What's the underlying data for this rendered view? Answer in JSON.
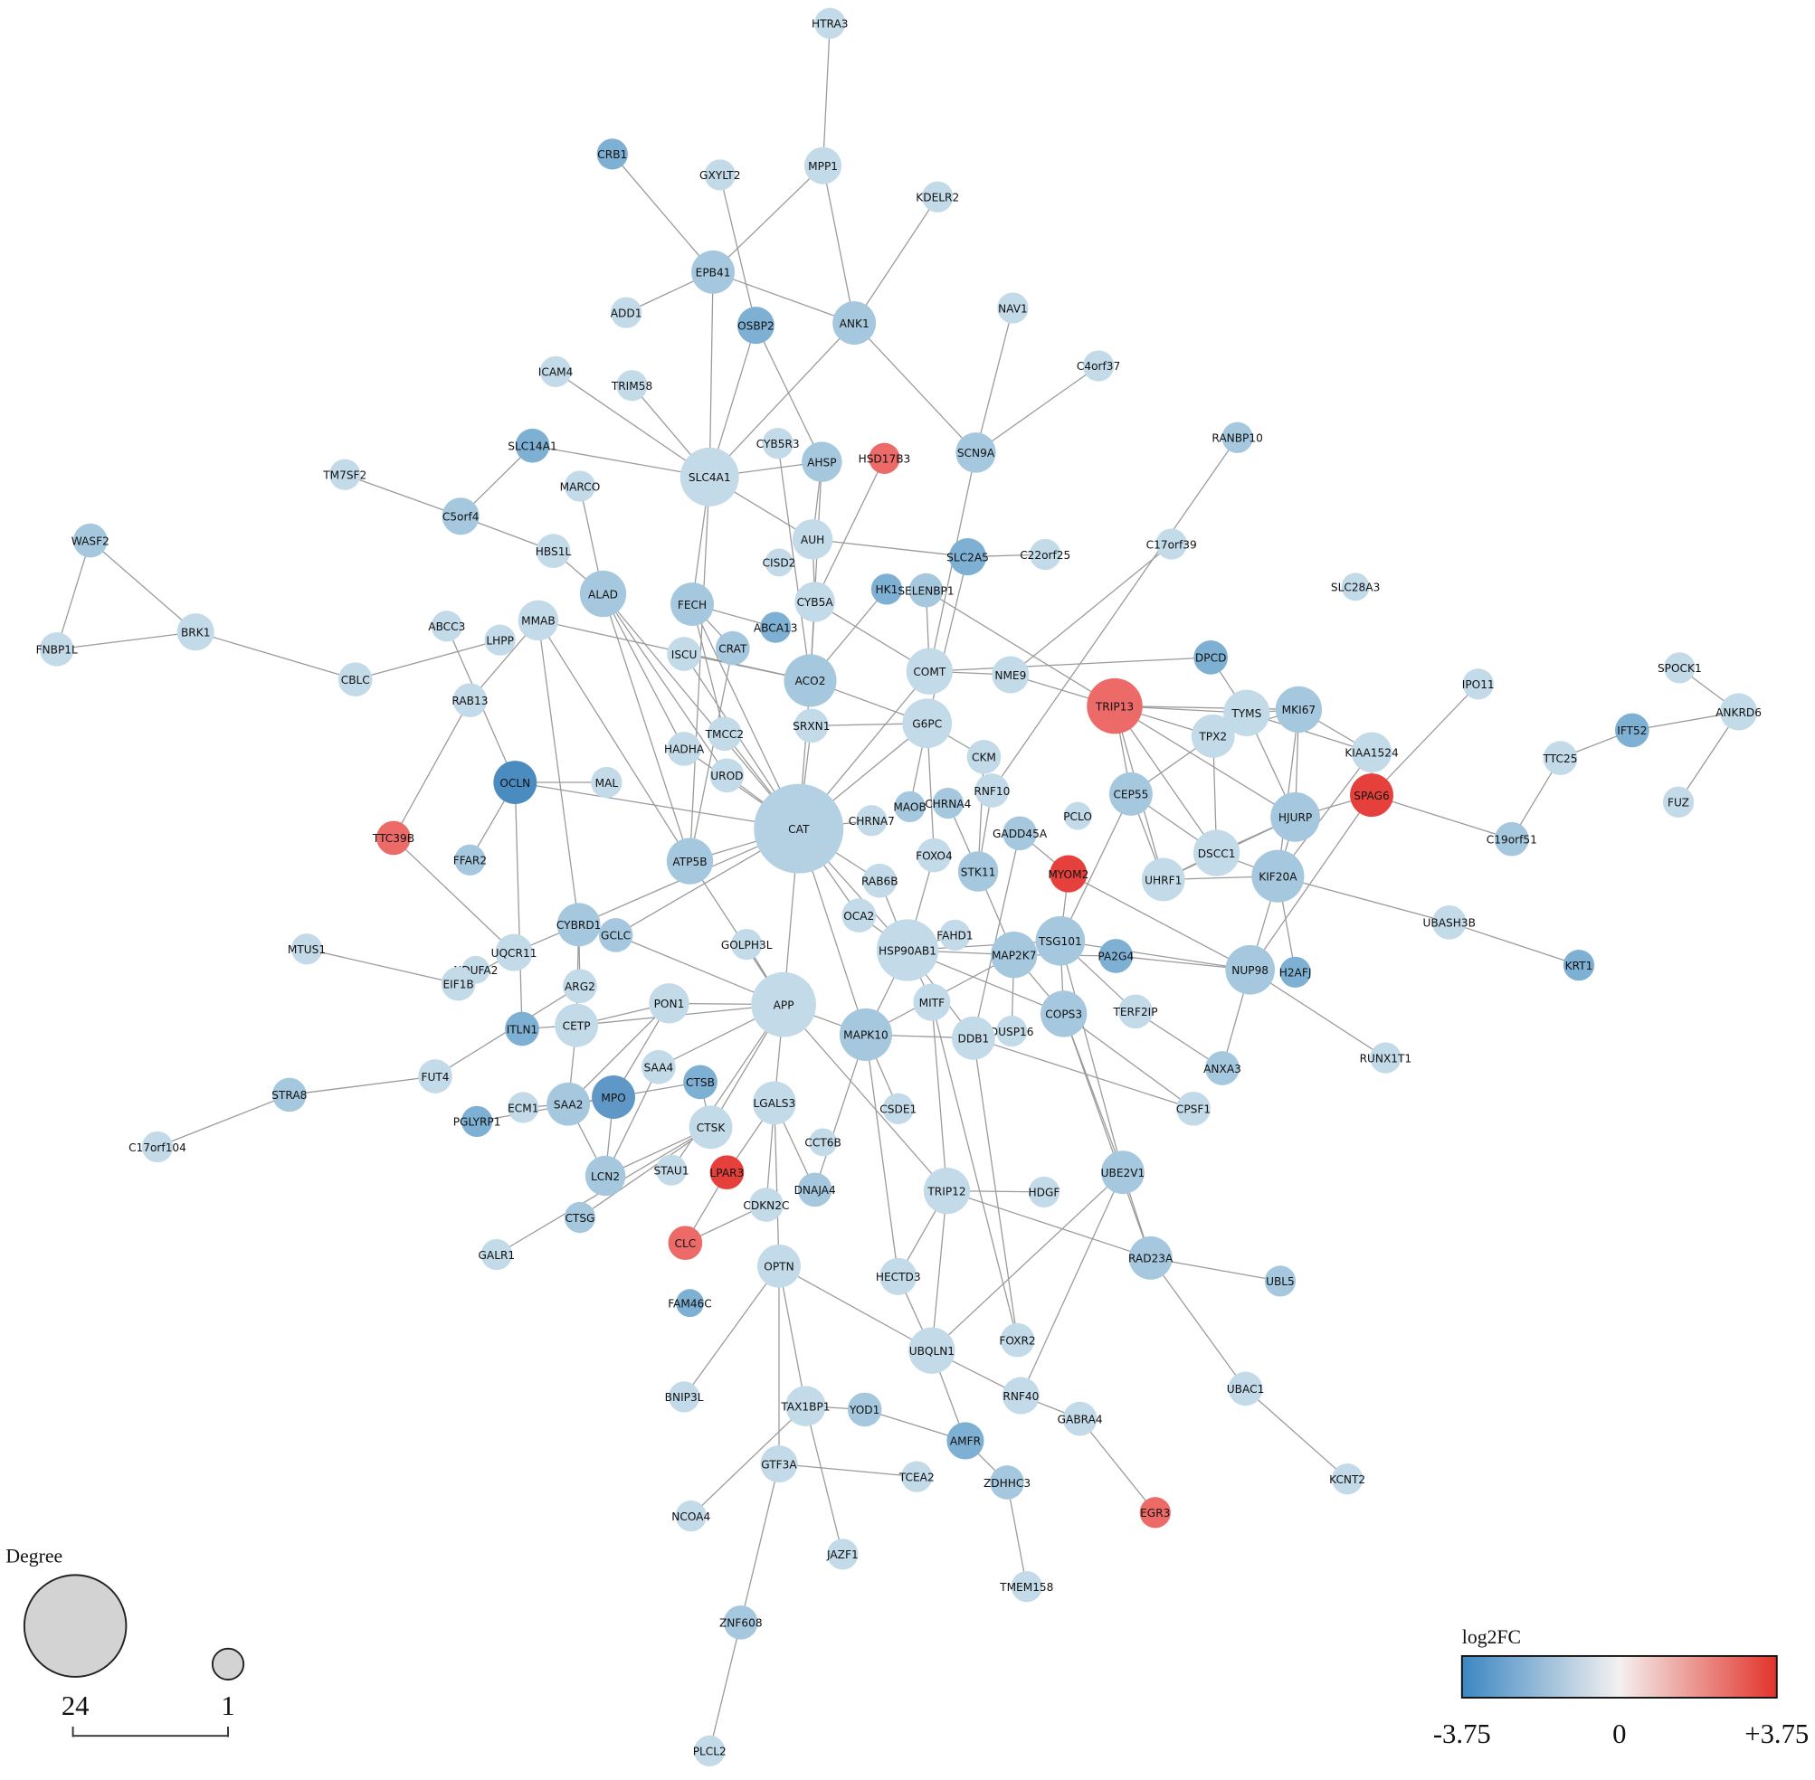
{
  "nodes": [
    {
      "label": "HTRA3",
      "color": "#c3dae9"
    },
    {
      "label": "MPP1",
      "color": "#c3dae9"
    },
    {
      "label": "CRB1",
      "color": "#7eb0d3"
    },
    {
      "label": "GXYLT2",
      "color": "#c3dae9"
    },
    {
      "label": "KDELR2",
      "color": "#c3dae9"
    },
    {
      "label": "EPB41",
      "color": "#a5c8df"
    },
    {
      "label": "ADD1",
      "color": "#c3dae9"
    },
    {
      "label": "OSBP2",
      "color": "#7eb0d3"
    },
    {
      "label": "ANK1",
      "color": "#a5c8df"
    },
    {
      "label": "NAV1",
      "color": "#c3dae9"
    },
    {
      "label": "ICAM4",
      "color": "#c3dae9"
    },
    {
      "label": "TRIM58",
      "color": "#c3dae9"
    },
    {
      "label": "C4orf37",
      "color": "#c3dae9"
    },
    {
      "label": "SLC14A1",
      "color": "#7eb0d3"
    },
    {
      "label": "TM7SF2",
      "color": "#c3dae9"
    },
    {
      "label": "MARCO",
      "color": "#c3dae9"
    },
    {
      "label": "SLC4A1",
      "color": "#c3dae9"
    },
    {
      "label": "CYB5R3",
      "color": "#c3dae9"
    },
    {
      "label": "AHSP",
      "color": "#a5c8df"
    },
    {
      "label": "HSD17B3",
      "color": "#ec6a68"
    },
    {
      "label": "SCN9A",
      "color": "#a5c8df"
    },
    {
      "label": "RANBP10",
      "color": "#a5c8df"
    },
    {
      "label": "C5orf4",
      "color": "#a5c8df"
    },
    {
      "label": "HBS1L",
      "color": "#c3dae9"
    },
    {
      "label": "AUH",
      "color": "#c3dae9"
    },
    {
      "label": "CISD2",
      "color": "#c3dae9"
    },
    {
      "label": "SLC2A5",
      "color": "#7eb0d3"
    },
    {
      "label": "C22orf25",
      "color": "#c3dae9"
    },
    {
      "label": "C17orf39",
      "color": "#c3dae9"
    },
    {
      "label": "WASF2",
      "color": "#a5c8df"
    },
    {
      "label": "ALAD",
      "color": "#a5c8df"
    },
    {
      "label": "FECH",
      "color": "#a5c8df"
    },
    {
      "label": "CYB5A",
      "color": "#c3dae9"
    },
    {
      "label": "HK1",
      "color": "#7eb0d3"
    },
    {
      "label": "SELENBP1",
      "color": "#a5c8df"
    },
    {
      "label": "SLC28A3",
      "color": "#c3dae9"
    },
    {
      "label": "ABCC3",
      "color": "#c3dae9"
    },
    {
      "label": "MMAB",
      "color": "#c3dae9"
    },
    {
      "label": "BRK1",
      "color": "#c3dae9"
    },
    {
      "label": "FNBP1L",
      "color": "#c3dae9"
    },
    {
      "label": "LHPP",
      "color": "#c3dae9"
    },
    {
      "label": "CBLC",
      "color": "#c3dae9"
    },
    {
      "label": "ISCU",
      "color": "#c3dae9"
    },
    {
      "label": "CRAT",
      "color": "#a5c8df"
    },
    {
      "label": "ABCA13",
      "color": "#7eb0d3"
    },
    {
      "label": "ACO2",
      "color": "#a5c8df"
    },
    {
      "label": "COMT",
      "color": "#c3dae9"
    },
    {
      "label": "NME9",
      "color": "#c3dae9"
    },
    {
      "label": "DPCD",
      "color": "#7eb0d3"
    },
    {
      "label": "IPO11",
      "color": "#c3dae9"
    },
    {
      "label": "SPOCK1",
      "color": "#c3dae9"
    },
    {
      "label": "TRIP13",
      "color": "#ec6a68"
    },
    {
      "label": "TYMS",
      "color": "#c3dae9"
    },
    {
      "label": "MKI67",
      "color": "#a5c8df"
    },
    {
      "label": "ANKRD6",
      "color": "#c3dae9"
    },
    {
      "label": "RAB13",
      "color": "#c3dae9"
    },
    {
      "label": "G6PC",
      "color": "#c3dae9"
    },
    {
      "label": "SRXN1",
      "color": "#c3dae9"
    },
    {
      "label": "TMCC2",
      "color": "#c3dae9"
    },
    {
      "label": "HADHA",
      "color": "#c3dae9"
    },
    {
      "label": "TPX2",
      "color": "#c3dae9"
    },
    {
      "label": "KIAA1524",
      "color": "#c3dae9"
    },
    {
      "label": "IFT52",
      "color": "#7eb0d3"
    },
    {
      "label": "TTC25",
      "color": "#c3dae9"
    },
    {
      "label": "CKM",
      "color": "#c3dae9"
    },
    {
      "label": "UROD",
      "color": "#c3dae9"
    },
    {
      "label": "OCLN",
      "color": "#4a8cc0"
    },
    {
      "label": "MAL",
      "color": "#c3dae9"
    },
    {
      "label": "RNF10",
      "color": "#c3dae9"
    },
    {
      "label": "SPAG6",
      "color": "#e5403c"
    },
    {
      "label": "CEP55",
      "color": "#a5c8df"
    },
    {
      "label": "HJURP",
      "color": "#a5c8df"
    },
    {
      "label": "FUZ",
      "color": "#c3dae9"
    },
    {
      "label": "CAT",
      "color": "#b4d1e4"
    },
    {
      "label": "CHRNA7",
      "color": "#c3dae9"
    },
    {
      "label": "MAOB",
      "color": "#a5c8df"
    },
    {
      "label": "CHRNA4",
      "color": "#a5c8df"
    },
    {
      "label": "PCLO",
      "color": "#c3dae9"
    },
    {
      "label": "TTC39B",
      "color": "#ec6a68"
    },
    {
      "label": "C19orf51",
      "color": "#a5c8df"
    },
    {
      "label": "GADD45A",
      "color": "#a5c8df"
    },
    {
      "label": "DSCC1",
      "color": "#c3dae9"
    },
    {
      "label": "ATP5B",
      "color": "#a5c8df"
    },
    {
      "label": "FFAR2",
      "color": "#a5c8df"
    },
    {
      "label": "FOXO4",
      "color": "#c3dae9"
    },
    {
      "label": "UHRF1",
      "color": "#c3dae9"
    },
    {
      "label": "KIF20A",
      "color": "#a5c8df"
    },
    {
      "label": "MYOM2",
      "color": "#e5403c"
    },
    {
      "label": "STK11",
      "color": "#a5c8df"
    },
    {
      "label": "RAB6B",
      "color": "#c3dae9"
    },
    {
      "label": "OCA2",
      "color": "#c3dae9"
    },
    {
      "label": "UBASH3B",
      "color": "#c3dae9"
    },
    {
      "label": "CYBRD1",
      "color": "#a5c8df"
    },
    {
      "label": "GCLC",
      "color": "#a5c8df"
    },
    {
      "label": "MTUS1",
      "color": "#c3dae9"
    },
    {
      "label": "UQCR11",
      "color": "#c3dae9"
    },
    {
      "label": "FAHD1",
      "color": "#c3dae9"
    },
    {
      "label": "HSP90AB1",
      "color": "#c3dae9"
    },
    {
      "label": "MAP2K7",
      "color": "#a5c8df"
    },
    {
      "label": "TSG101",
      "color": "#a5c8df"
    },
    {
      "label": "PA2G4",
      "color": "#7eb0d3"
    },
    {
      "label": "GOLPH3L",
      "color": "#c3dae9"
    },
    {
      "label": "KRT1",
      "color": "#7eb0d3"
    },
    {
      "label": "NDUFA2",
      "color": "#c3dae9"
    },
    {
      "label": "NUP98",
      "color": "#a5c8df"
    },
    {
      "label": "H2AFJ",
      "color": "#7eb0d3"
    },
    {
      "label": "ARG2",
      "color": "#c3dae9"
    },
    {
      "label": "APP",
      "color": "#c3dae9"
    },
    {
      "label": "EIF1B",
      "color": "#c3dae9"
    },
    {
      "label": "PON1",
      "color": "#c3dae9"
    },
    {
      "label": "MITF",
      "color": "#c3dae9"
    },
    {
      "label": "TERF2IP",
      "color": "#c3dae9"
    },
    {
      "label": "COPS3",
      "color": "#a5c8df"
    },
    {
      "label": "CETP",
      "color": "#c3dae9"
    },
    {
      "label": "ITLN1",
      "color": "#7eb0d3"
    },
    {
      "label": "MAPK10",
      "color": "#a5c8df"
    },
    {
      "label": "DUSP16",
      "color": "#c3dae9"
    },
    {
      "label": "DDB1",
      "color": "#c3dae9"
    },
    {
      "label": "RUNX1T1",
      "color": "#c3dae9"
    },
    {
      "label": "ANXA3",
      "color": "#a5c8df"
    },
    {
      "label": "SAA4",
      "color": "#c3dae9"
    },
    {
      "label": "CTSB",
      "color": "#7eb0d3"
    },
    {
      "label": "FUT4",
      "color": "#c3dae9"
    },
    {
      "label": "STRA8",
      "color": "#a5c8df"
    },
    {
      "label": "SAA2",
      "color": "#a5c8df"
    },
    {
      "label": "MPO",
      "color": "#5f98c6"
    },
    {
      "label": "ECM1",
      "color": "#c3dae9"
    },
    {
      "label": "LGALS3",
      "color": "#c3dae9"
    },
    {
      "label": "CSDE1",
      "color": "#c3dae9"
    },
    {
      "label": "CPSF1",
      "color": "#c3dae9"
    },
    {
      "label": "PGLYRP1",
      "color": "#7eb0d3"
    },
    {
      "label": "CTSK",
      "color": "#c3dae9"
    },
    {
      "label": "CCT6B",
      "color": "#c3dae9"
    },
    {
      "label": "C17orf104",
      "color": "#c3dae9"
    },
    {
      "label": "STAU1",
      "color": "#c3dae9"
    },
    {
      "label": "LPAR3",
      "color": "#e5403c"
    },
    {
      "label": "LCN2",
      "color": "#a5c8df"
    },
    {
      "label": "UBE2V1",
      "color": "#a5c8df"
    },
    {
      "label": "TRIP12",
      "color": "#c3dae9"
    },
    {
      "label": "HDGF",
      "color": "#c3dae9"
    },
    {
      "label": "DNAJA4",
      "color": "#a5c8df"
    },
    {
      "label": "CDKN2C",
      "color": "#c3dae9"
    },
    {
      "label": "CTSG",
      "color": "#a5c8df"
    },
    {
      "label": "CLC",
      "color": "#ec6a68"
    },
    {
      "label": "GALR1",
      "color": "#c3dae9"
    },
    {
      "label": "RAD23A",
      "color": "#a5c8df"
    },
    {
      "label": "OPTN",
      "color": "#c3dae9"
    },
    {
      "label": "HECTD3",
      "color": "#c3dae9"
    },
    {
      "label": "UBL5",
      "color": "#a5c8df"
    },
    {
      "label": "FAM46C",
      "color": "#7eb0d3"
    },
    {
      "label": "FOXR2",
      "color": "#c3dae9"
    },
    {
      "label": "UBQLN1",
      "color": "#c3dae9"
    },
    {
      "label": "UBAC1",
      "color": "#c3dae9"
    },
    {
      "label": "BNIP3L",
      "color": "#c3dae9"
    },
    {
      "label": "RNF40",
      "color": "#c3dae9"
    },
    {
      "label": "TAX1BP1",
      "color": "#c3dae9"
    },
    {
      "label": "GABRA4",
      "color": "#c3dae9"
    },
    {
      "label": "YOD1",
      "color": "#a5c8df"
    },
    {
      "label": "AMFR",
      "color": "#7eb0d3"
    },
    {
      "label": "GTF3A",
      "color": "#c3dae9"
    },
    {
      "label": "TCEA2",
      "color": "#c3dae9"
    },
    {
      "label": "ZDHHC3",
      "color": "#a5c8df"
    },
    {
      "label": "KCNT2",
      "color": "#c3dae9"
    },
    {
      "label": "EGR3",
      "color": "#ec6a68"
    },
    {
      "label": "NCOA4",
      "color": "#c3dae9"
    },
    {
      "label": "JAZF1",
      "color": "#c3dae9"
    },
    {
      "label": "TMEM158",
      "color": "#c3dae9"
    },
    {
      "label": "ZNF608",
      "color": "#a5c8df"
    },
    {
      "label": "PLCL2",
      "color": "#c3dae9"
    }
  ],
  "edges": [
    [
      0,
      1
    ],
    [
      1,
      8
    ],
    [
      1,
      5
    ],
    [
      3,
      7
    ],
    [
      2,
      5
    ],
    [
      4,
      8
    ],
    [
      5,
      6
    ],
    [
      5,
      8
    ],
    [
      5,
      16
    ],
    [
      7,
      16
    ],
    [
      7,
      18
    ],
    [
      8,
      16
    ],
    [
      8,
      20
    ],
    [
      9,
      20
    ],
    [
      12,
      20
    ],
    [
      20,
      46
    ],
    [
      10,
      16
    ],
    [
      11,
      16
    ],
    [
      13,
      16
    ],
    [
      13,
      22
    ],
    [
      14,
      22
    ],
    [
      15,
      30
    ],
    [
      16,
      18
    ],
    [
      16,
      24
    ],
    [
      16,
      31
    ],
    [
      16,
      82
    ],
    [
      17,
      45
    ],
    [
      18,
      45
    ],
    [
      18,
      24
    ],
    [
      19,
      32
    ],
    [
      24,
      26
    ],
    [
      24,
      32
    ],
    [
      22,
      23
    ],
    [
      23,
      30
    ],
    [
      30,
      59
    ],
    [
      30,
      82
    ],
    [
      30,
      73
    ],
    [
      30,
      65
    ],
    [
      31,
      73
    ],
    [
      31,
      43
    ],
    [
      31,
      44
    ],
    [
      31,
      58
    ],
    [
      32,
      45
    ],
    [
      32,
      46
    ],
    [
      33,
      45
    ],
    [
      34,
      46
    ],
    [
      34,
      51
    ],
    [
      26,
      56
    ],
    [
      27,
      26
    ],
    [
      21,
      68
    ],
    [
      28,
      47
    ],
    [
      29,
      38
    ],
    [
      29,
      39
    ],
    [
      38,
      39
    ],
    [
      38,
      41
    ],
    [
      41,
      40
    ],
    [
      36,
      66
    ],
    [
      37,
      92
    ],
    [
      37,
      82
    ],
    [
      37,
      55
    ],
    [
      37,
      45
    ],
    [
      42,
      73
    ],
    [
      42,
      45
    ],
    [
      43,
      82
    ],
    [
      45,
      73
    ],
    [
      45,
      56
    ],
    [
      46,
      47
    ],
    [
      46,
      73
    ],
    [
      47,
      51
    ],
    [
      46,
      48
    ],
    [
      48,
      52
    ],
    [
      51,
      52
    ],
    [
      51,
      53
    ],
    [
      51,
      60
    ],
    [
      51,
      70
    ],
    [
      51,
      81
    ],
    [
      51,
      85
    ],
    [
      51,
      71
    ],
    [
      52,
      53
    ],
    [
      52,
      60
    ],
    [
      52,
      71
    ],
    [
      53,
      60
    ],
    [
      53,
      71
    ],
    [
      53,
      86
    ],
    [
      53,
      61
    ],
    [
      60,
      70
    ],
    [
      60,
      81
    ],
    [
      61,
      86
    ],
    [
      61,
      52
    ],
    [
      70,
      85
    ],
    [
      70,
      81
    ],
    [
      70,
      99
    ],
    [
      71,
      85
    ],
    [
      71,
      86
    ],
    [
      71,
      81
    ],
    [
      81,
      85
    ],
    [
      81,
      86
    ],
    [
      86,
      85
    ],
    [
      86,
      104
    ],
    [
      86,
      105
    ],
    [
      86,
      91
    ],
    [
      69,
      71
    ],
    [
      69,
      49
    ],
    [
      69,
      104
    ],
    [
      69,
      61
    ],
    [
      91,
      102
    ],
    [
      62,
      63
    ],
    [
      62,
      54
    ],
    [
      63,
      79
    ],
    [
      79,
      69
    ],
    [
      50,
      54
    ],
    [
      54,
      72
    ],
    [
      55,
      78
    ],
    [
      66,
      67
    ],
    [
      66,
      83
    ],
    [
      66,
      73
    ],
    [
      66,
      114
    ],
    [
      73,
      56
    ],
    [
      73,
      57
    ],
    [
      73,
      58
    ],
    [
      73,
      59
    ],
    [
      73,
      65
    ],
    [
      73,
      107
    ],
    [
      73,
      97
    ],
    [
      73,
      74
    ],
    [
      73,
      82
    ],
    [
      73,
      92
    ],
    [
      73,
      93
    ],
    [
      73,
      115
    ],
    [
      73,
      89
    ],
    [
      57,
      56
    ],
    [
      56,
      64
    ],
    [
      56,
      75
    ],
    [
      56,
      84
    ],
    [
      64,
      88
    ],
    [
      68,
      88
    ],
    [
      76,
      88
    ],
    [
      84,
      97
    ],
    [
      88,
      98
    ],
    [
      80,
      87
    ],
    [
      80,
      117
    ],
    [
      87,
      104
    ],
    [
      87,
      99
    ],
    [
      99,
      97
    ],
    [
      99,
      104
    ],
    [
      99,
      111
    ],
    [
      99,
      112
    ],
    [
      99,
      137
    ],
    [
      98,
      97
    ],
    [
      98,
      115
    ],
    [
      98,
      112
    ],
    [
      97,
      115
    ],
    [
      97,
      110
    ],
    [
      97,
      117
    ],
    [
      97,
      112
    ],
    [
      97,
      90
    ],
    [
      97,
      96
    ],
    [
      101,
      107
    ],
    [
      107,
      109
    ],
    [
      107,
      113
    ],
    [
      107,
      120
    ],
    [
      107,
      127
    ],
    [
      107,
      131
    ],
    [
      107,
      134
    ],
    [
      107,
      115
    ],
    [
      107,
      82
    ],
    [
      107,
      93
    ],
    [
      107,
      138
    ],
    [
      109,
      113
    ],
    [
      109,
      125
    ],
    [
      109,
      124
    ],
    [
      92,
      95
    ],
    [
      92,
      113
    ],
    [
      92,
      106
    ],
    [
      95,
      78
    ],
    [
      95,
      108
    ],
    [
      94,
      108
    ],
    [
      106,
      122
    ],
    [
      113,
      124
    ],
    [
      113,
      114
    ],
    [
      122,
      123
    ],
    [
      123,
      133
    ],
    [
      124,
      125
    ],
    [
      124,
      126
    ],
    [
      124,
      136
    ],
    [
      125,
      130
    ],
    [
      125,
      121
    ],
    [
      125,
      136
    ],
    [
      131,
      136
    ],
    [
      131,
      142
    ],
    [
      131,
      144
    ],
    [
      131,
      121
    ],
    [
      127,
      135
    ],
    [
      127,
      140
    ],
    [
      127,
      141
    ],
    [
      127,
      146
    ],
    [
      115,
      147
    ],
    [
      115,
      140
    ],
    [
      115,
      128
    ],
    [
      115,
      117
    ],
    [
      110,
      150
    ],
    [
      110,
      138
    ],
    [
      117,
      150
    ],
    [
      117,
      129
    ],
    [
      116,
      98
    ],
    [
      112,
      129
    ],
    [
      112,
      137
    ],
    [
      112,
      145
    ],
    [
      137,
      145
    ],
    [
      137,
      151
    ],
    [
      137,
      154
    ],
    [
      138,
      145
    ],
    [
      138,
      147
    ],
    [
      138,
      151
    ],
    [
      138,
      139
    ],
    [
      145,
      148
    ],
    [
      145,
      152
    ],
    [
      152,
      162
    ],
    [
      146,
      151
    ],
    [
      146,
      155
    ],
    [
      146,
      159
    ],
    [
      146,
      153
    ],
    [
      155,
      157
    ],
    [
      155,
      165
    ],
    [
      155,
      164
    ],
    [
      151,
      158
    ],
    [
      151,
      154
    ],
    [
      154,
      156
    ],
    [
      156,
      163
    ],
    [
      157,
      158
    ],
    [
      158,
      161
    ],
    [
      161,
      166
    ],
    [
      159,
      160
    ],
    [
      159,
      167
    ],
    [
      167,
      168
    ],
    [
      147,
      151
    ],
    [
      141,
      143
    ],
    [
      135,
      143
    ],
    [
      120,
      136
    ],
    [
      104,
      118
    ],
    [
      104,
      119
    ],
    [
      111,
      119
    ],
    [
      104,
      100
    ],
    [
      90,
      73
    ],
    [
      89,
      97
    ],
    [
      100,
      98
    ]
  ],
  "legend": {
    "degree_title": "Degree",
    "degree_values": [
      24,
      1
    ],
    "color_title": "log2FC",
    "color_ticks": [
      -3.75,
      0,
      {
        "value": 3.75,
        "label": "+3.75"
      }
    ],
    "colormap": [
      "#3a86c2",
      "#f4f1f0",
      "#e2332a"
    ]
  }
}
